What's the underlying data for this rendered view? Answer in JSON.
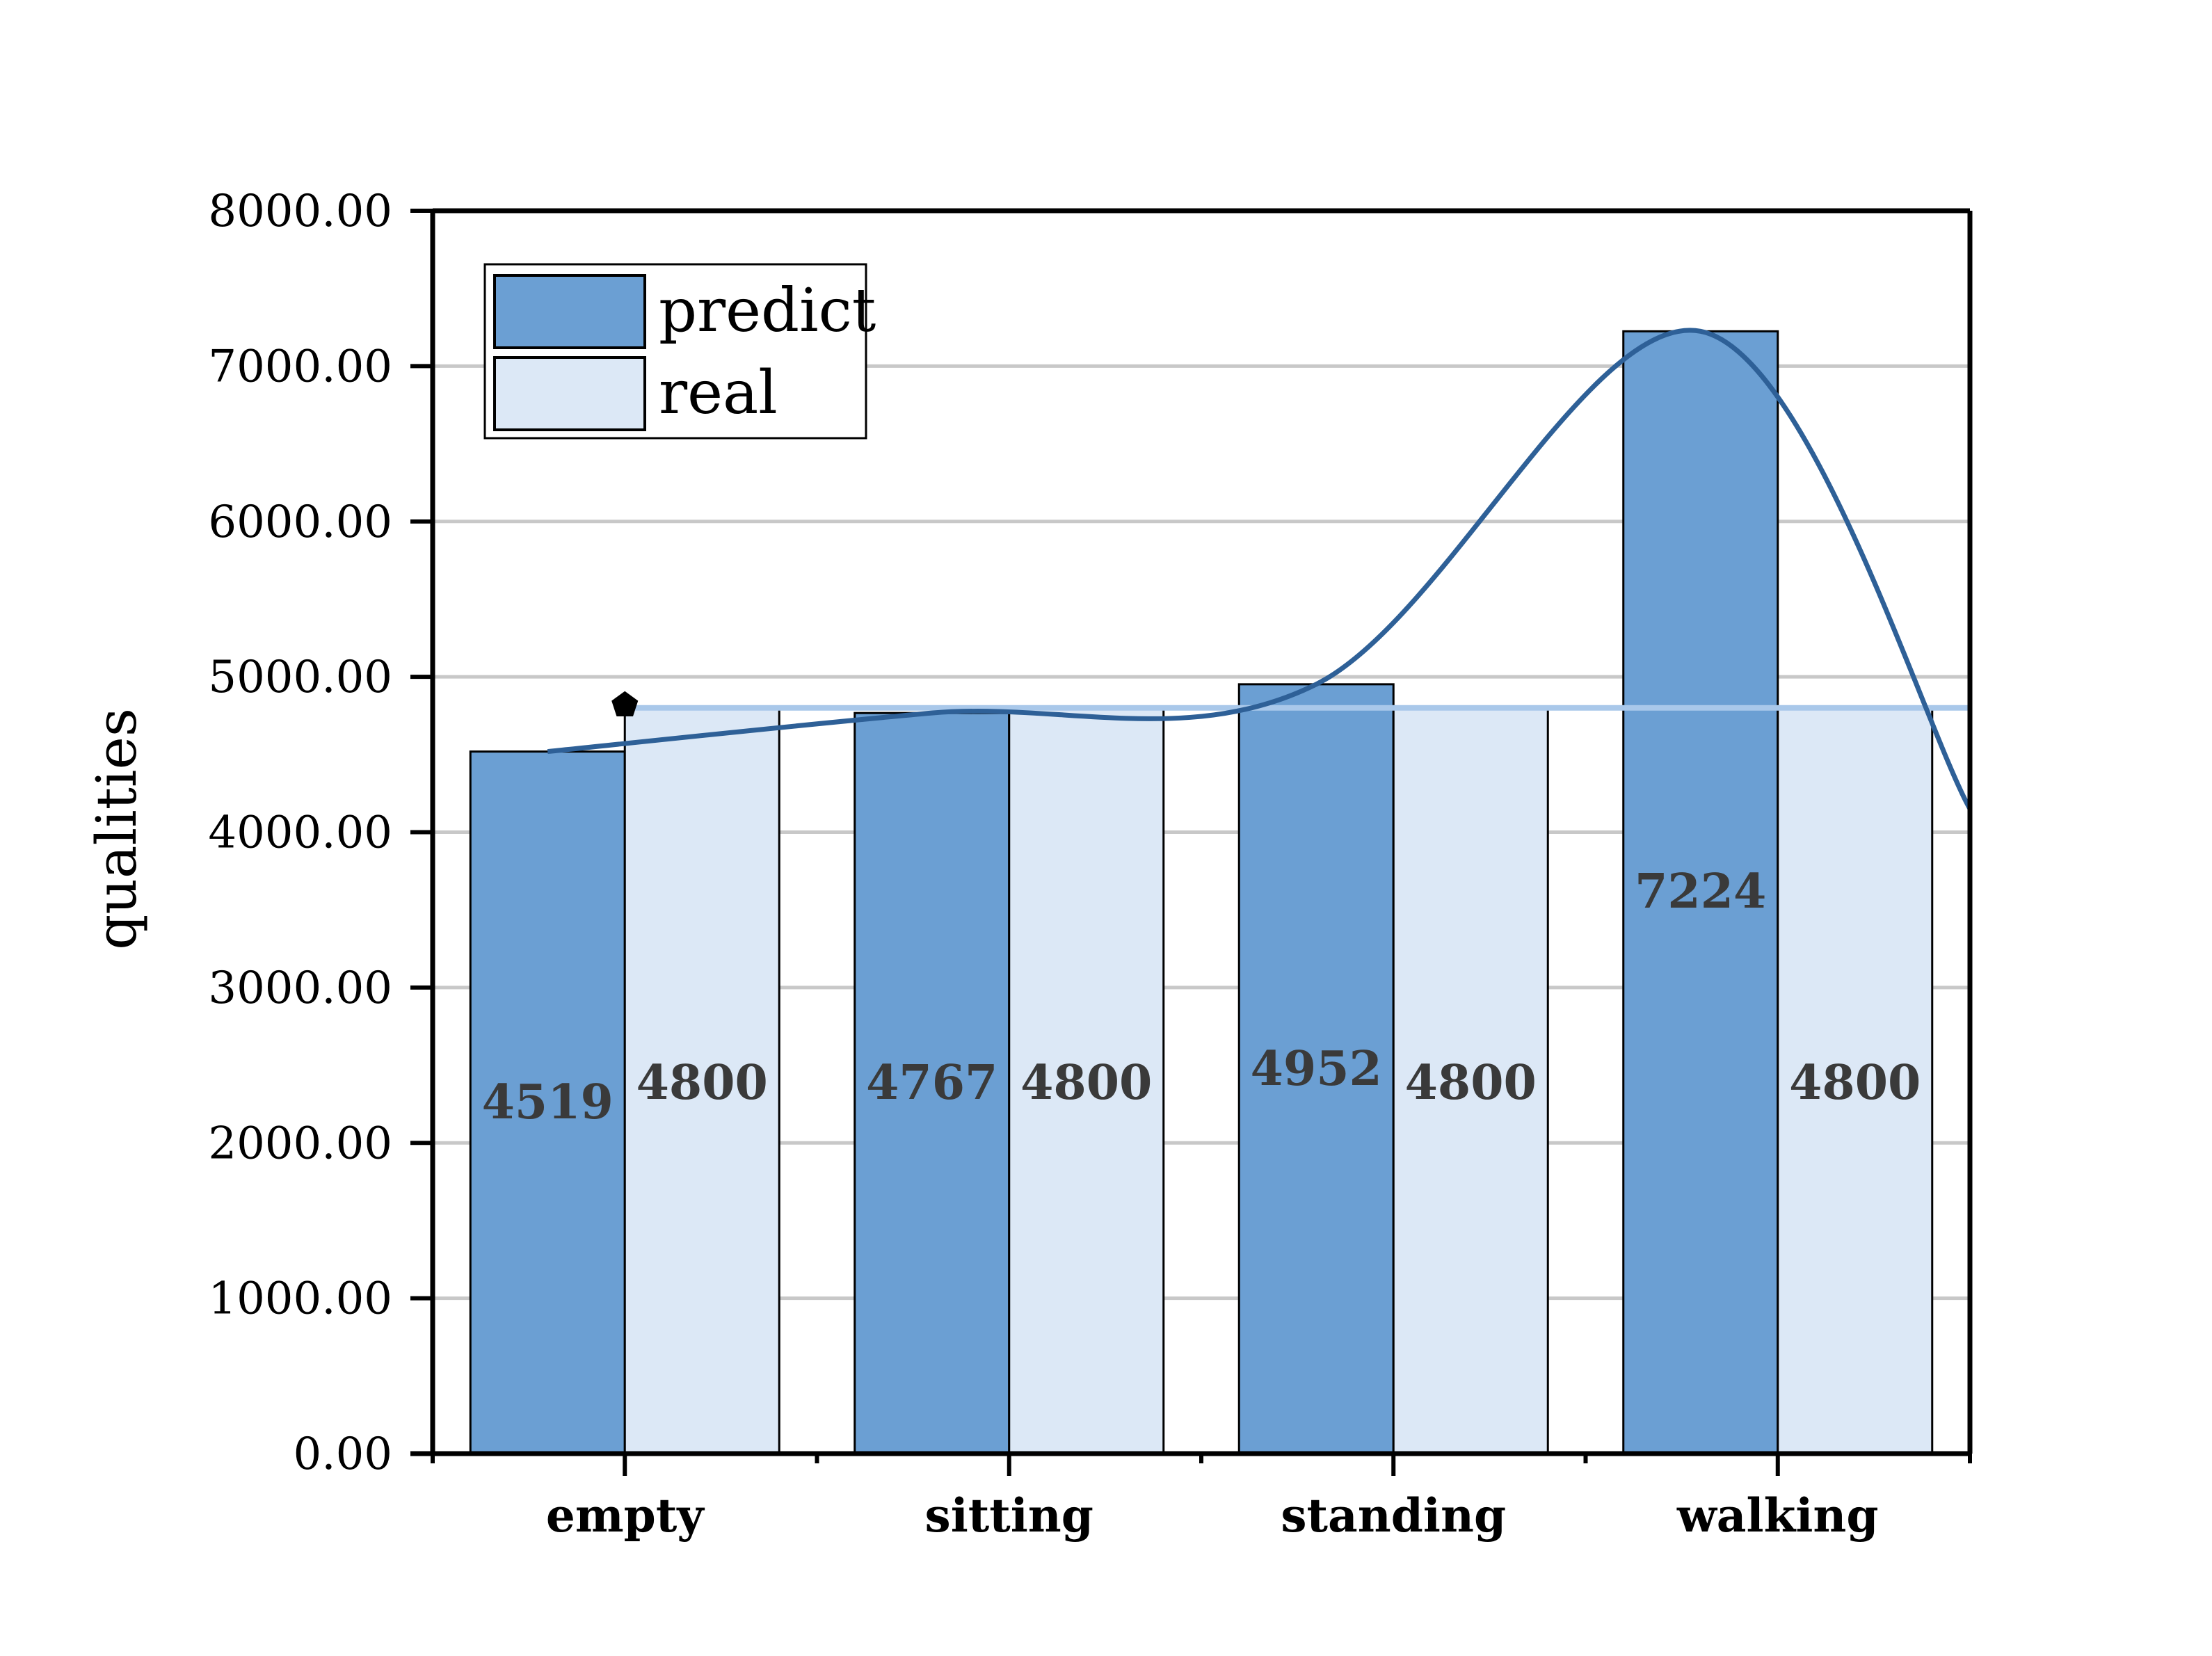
{
  "chart_data": {
    "type": "bar",
    "categories": [
      "empty",
      "sitting",
      "standing",
      "walking"
    ],
    "series": [
      {
        "name": "predict",
        "values": [
          4519,
          4767,
          4952,
          7224
        ],
        "color": "#6b9fd3"
      },
      {
        "name": "real",
        "values": [
          4800,
          4800,
          4800,
          4800
        ],
        "color": "#dce8f6"
      }
    ],
    "data_labels": {
      "predict": [
        "4519",
        "4767",
        "4952",
        "7224"
      ],
      "real": [
        "4800",
        "4800",
        "4800",
        "4800"
      ]
    },
    "ylabel": "qualities",
    "xlabel": "",
    "ylim": [
      0,
      8000
    ],
    "yticks": [
      "0.00",
      "1000.00",
      "2000.00",
      "3000.00",
      "4000.00",
      "5000.00",
      "6000.00",
      "7000.00",
      "8000.00"
    ],
    "grid": true,
    "legend": "top-left",
    "overlays": {
      "real_line_value": 4800,
      "real_line_color": "#a9c8ea",
      "predict_curve_color": "#2e6097"
    }
  }
}
